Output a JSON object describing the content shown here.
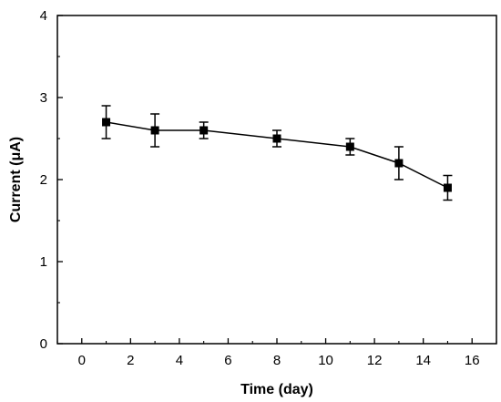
{
  "chart_data": {
    "type": "line",
    "title": "",
    "xlabel": "Time (day)",
    "ylabel": "Current (μA)",
    "xlim": [
      -1,
      17
    ],
    "ylim": [
      0,
      4
    ],
    "x_ticks": [
      0,
      2,
      4,
      6,
      8,
      10,
      12,
      14,
      16
    ],
    "y_ticks": [
      0,
      1,
      2,
      3,
      4
    ],
    "grid": false,
    "legend": "none",
    "series": [
      {
        "x": [
          1,
          3,
          5,
          8,
          11,
          13,
          15
        ],
        "y": [
          2.7,
          2.6,
          2.6,
          2.5,
          2.4,
          2.2,
          1.9
        ],
        "error": [
          0.2,
          0.2,
          0.1,
          0.1,
          0.1,
          0.2,
          0.15
        ],
        "color": "#000000",
        "marker": "square"
      }
    ]
  }
}
